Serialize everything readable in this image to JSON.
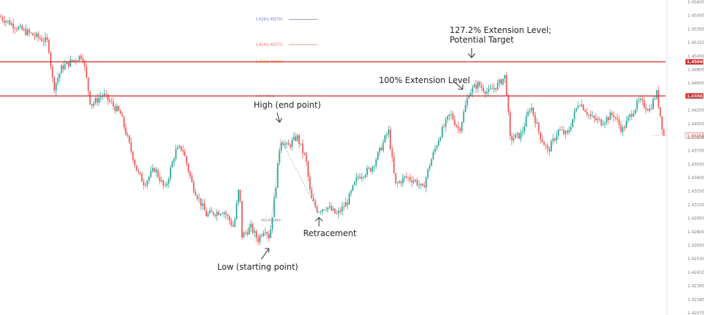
{
  "chart_data": {
    "type": "candlestick",
    "ylim": [
      1.4206,
      1.458
    ],
    "y_ticks": [
      "1.45600",
      "1.45450",
      "1.45300",
      "1.45150",
      "1.45000",
      "1.44800",
      "1.44600",
      "1.44400",
      "1.44200",
      "1.44000",
      "1.43850",
      "1.43700",
      "1.43550",
      "1.43400",
      "1.43250",
      "1.43100",
      "1.42950",
      "1.42800",
      "1.42650",
      "1.42530",
      "1.42410",
      "1.42300",
      "1.42180",
      "1.42070"
    ],
    "series_colors": {
      "up": "#26a69a",
      "down": "#ef5350",
      "level": "#d32f2f"
    },
    "swing_path": [
      {
        "x": 0,
        "price": 1.456
      },
      {
        "x": 30,
        "price": 1.4545
      },
      {
        "x": 70,
        "price": 1.453
      },
      {
        "x": 78,
        "price": 1.4475
      },
      {
        "x": 90,
        "price": 1.45
      },
      {
        "x": 120,
        "price": 1.4515
      },
      {
        "x": 132,
        "price": 1.4455
      },
      {
        "x": 150,
        "price": 1.4468
      },
      {
        "x": 175,
        "price": 1.4445
      },
      {
        "x": 200,
        "price": 1.4375
      },
      {
        "x": 210,
        "price": 1.4362
      },
      {
        "x": 225,
        "price": 1.438
      },
      {
        "x": 240,
        "price": 1.4355
      },
      {
        "x": 255,
        "price": 1.44
      },
      {
        "x": 265,
        "price": 1.4405
      },
      {
        "x": 280,
        "price": 1.436
      },
      {
        "x": 300,
        "price": 1.4325
      },
      {
        "x": 325,
        "price": 1.433
      },
      {
        "x": 340,
        "price": 1.431
      },
      {
        "x": 348,
        "price": 1.436
      },
      {
        "x": 352,
        "price": 1.43
      },
      {
        "x": 365,
        "price": 1.431
      },
      {
        "x": 375,
        "price": 1.4295
      },
      {
        "x": 385,
        "price": 1.431
      },
      {
        "x": 392,
        "price": 1.4298
      },
      {
        "x": 400,
        "price": 1.435
      },
      {
        "x": 408,
        "price": 1.4415
      },
      {
        "x": 418,
        "price": 1.4405
      },
      {
        "x": 432,
        "price": 1.4418
      },
      {
        "x": 445,
        "price": 1.439
      },
      {
        "x": 452,
        "price": 1.4345
      },
      {
        "x": 462,
        "price": 1.433
      },
      {
        "x": 475,
        "price": 1.4335
      },
      {
        "x": 490,
        "price": 1.4325
      },
      {
        "x": 505,
        "price": 1.434
      },
      {
        "x": 520,
        "price": 1.437
      },
      {
        "x": 540,
        "price": 1.438
      },
      {
        "x": 552,
        "price": 1.44
      },
      {
        "x": 565,
        "price": 1.4425
      },
      {
        "x": 575,
        "price": 1.436
      },
      {
        "x": 590,
        "price": 1.437
      },
      {
        "x": 605,
        "price": 1.4365
      },
      {
        "x": 615,
        "price": 1.4355
      },
      {
        "x": 625,
        "price": 1.4385
      },
      {
        "x": 640,
        "price": 1.442
      },
      {
        "x": 655,
        "price": 1.4445
      },
      {
        "x": 668,
        "price": 1.4425
      },
      {
        "x": 682,
        "price": 1.447
      },
      {
        "x": 695,
        "price": 1.448
      },
      {
        "x": 710,
        "price": 1.447
      },
      {
        "x": 725,
        "price": 1.448
      },
      {
        "x": 735,
        "price": 1.449
      },
      {
        "x": 742,
        "price": 1.4415
      },
      {
        "x": 758,
        "price": 1.442
      },
      {
        "x": 772,
        "price": 1.4455
      },
      {
        "x": 785,
        "price": 1.442
      },
      {
        "x": 797,
        "price": 1.44
      },
      {
        "x": 812,
        "price": 1.4425
      },
      {
        "x": 825,
        "price": 1.442
      },
      {
        "x": 842,
        "price": 1.446
      },
      {
        "x": 860,
        "price": 1.444
      },
      {
        "x": 875,
        "price": 1.4435
      },
      {
        "x": 892,
        "price": 1.4445
      },
      {
        "x": 905,
        "price": 1.4425
      },
      {
        "x": 918,
        "price": 1.4445
      },
      {
        "x": 930,
        "price": 1.446
      },
      {
        "x": 945,
        "price": 1.445
      },
      {
        "x": 955,
        "price": 1.447
      },
      {
        "x": 965,
        "price": 1.442
      },
      {
        "x": 980,
        "price": 1.44
      },
      {
        "x": 990,
        "price": 1.4405
      },
      {
        "x": 1000,
        "price": 1.442
      }
    ],
    "horizontal_levels": [
      {
        "price": 1.45066,
        "label": "1.45066"
      },
      {
        "price": 1.44661,
        "label": "1.44661"
      }
    ],
    "last_price": {
      "price": 1.44192,
      "label": "1.44192"
    },
    "fib_levels": [
      {
        "label": "1.618(1.45570)",
        "price": 1.4557,
        "color": "#5c6bc0"
      },
      {
        "label": "1.414(1.45271)",
        "price": 1.45271,
        "color": "#ef5350"
      },
      {
        "label": "1.272(1.45066)",
        "price": 1.45066,
        "color": "#ff9800"
      },
      {
        "label": "1(1.44661)",
        "price": 1.44661,
        "color": "#9e9e9e"
      },
      {
        "label": "0(1.43186)",
        "price": 1.43186,
        "color": "#9e9e9e"
      }
    ],
    "fib_points": {
      "low": {
        "x": 392,
        "price": 1.4298
      },
      "high": {
        "x": 408,
        "price": 1.4415
      },
      "retrace": {
        "x": 462,
        "price": 1.433
      }
    }
  },
  "annotations": {
    "extension_127": "127.2% Extension Level;",
    "potential_target": "Potential Target",
    "extension_100": "100% Extension Level",
    "high_end": "High (end point)",
    "retracement": "Retracement",
    "low_start": "Low (starting point)"
  }
}
